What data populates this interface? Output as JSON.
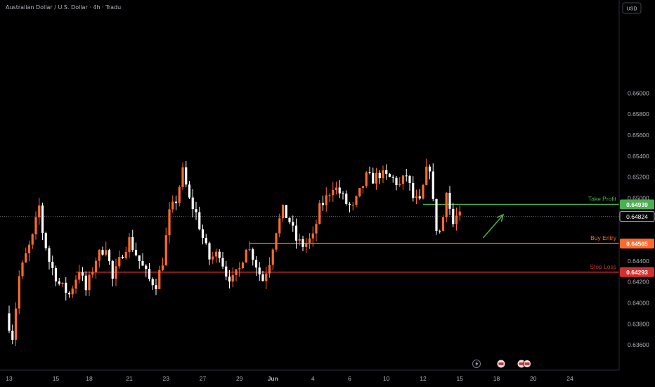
{
  "chart_data": {
    "type": "candlestick",
    "title": "Australian Dollar / U.S. Dollar · 4h · Tradu",
    "currency": "USD",
    "ylim": [
      0.6352,
      0.6672
    ],
    "y_ticks": [
      "0.66000",
      "0.65800",
      "0.65600",
      "0.65400",
      "0.65200",
      "0.65000",
      "0.64800",
      "0.64600",
      "0.64400",
      "0.64200",
      "0.64000",
      "0.63800",
      "0.63600"
    ],
    "x_tick_labels": [
      "13",
      "15",
      "18",
      "21",
      "23",
      "27",
      "29",
      "Jun",
      "4",
      "6",
      "10",
      "12",
      "15",
      "18",
      "20",
      "24"
    ],
    "x_tick_index": [
      0,
      14,
      24,
      36,
      47,
      58,
      69,
      79,
      91,
      102,
      113,
      124,
      135,
      146,
      157,
      168
    ],
    "current_price": {
      "value": 0.64824,
      "label": "0.64824"
    },
    "levels": [
      {
        "name": "Take Profit",
        "value": 0.64939,
        "label": "0.64939",
        "color": "#4caf50",
        "start_index": 124
      },
      {
        "name": "Buy Entry",
        "value": 0.64565,
        "label": "0.64565",
        "color": "#ff6a2a",
        "start_index": 72
      },
      {
        "name": "Stop Loss",
        "value": 0.64293,
        "label": "0.64293",
        "color": "#d32f2f",
        "start_index": 20
      }
    ],
    "arrow": {
      "from": [
        142,
        0.6462
      ],
      "to": [
        148,
        0.6484
      ],
      "color": "#4caf50"
    },
    "colors": {
      "up": "#ff6a2a",
      "down": "#ffffff",
      "background": "#000000",
      "axis_text": "#b2b5be"
    },
    "anchors": [
      [
        0,
        0.639
      ],
      [
        2,
        0.6368
      ],
      [
        4,
        0.6425
      ],
      [
        6,
        0.6445
      ],
      [
        8,
        0.6462
      ],
      [
        10,
        0.6492
      ],
      [
        11,
        0.6468
      ],
      [
        13,
        0.644
      ],
      [
        16,
        0.6418
      ],
      [
        19,
        0.6408
      ],
      [
        22,
        0.6432
      ],
      [
        24,
        0.6412
      ],
      [
        27,
        0.6442
      ],
      [
        30,
        0.6455
      ],
      [
        32,
        0.6422
      ],
      [
        35,
        0.6448
      ],
      [
        37,
        0.646
      ],
      [
        40,
        0.644
      ],
      [
        43,
        0.6422
      ],
      [
        45,
        0.6418
      ],
      [
        47,
        0.644
      ],
      [
        49,
        0.6485
      ],
      [
        51,
        0.6498
      ],
      [
        53,
        0.6525
      ],
      [
        55,
        0.6498
      ],
      [
        57,
        0.6485
      ],
      [
        59,
        0.6462
      ],
      [
        61,
        0.6442
      ],
      [
        64,
        0.6448
      ],
      [
        66,
        0.6428
      ],
      [
        68,
        0.6422
      ],
      [
        70,
        0.6432
      ],
      [
        72,
        0.6455
      ],
      [
        74,
        0.6445
      ],
      [
        76,
        0.6428
      ],
      [
        77,
        0.6422
      ],
      [
        79,
        0.644
      ],
      [
        81,
        0.647
      ],
      [
        83,
        0.6488
      ],
      [
        85,
        0.6478
      ],
      [
        87,
        0.646
      ],
      [
        89,
        0.6455
      ],
      [
        92,
        0.6462
      ],
      [
        94,
        0.649
      ],
      [
        96,
        0.65
      ],
      [
        98,
        0.6512
      ],
      [
        100,
        0.6505
      ],
      [
        102,
        0.6495
      ],
      [
        104,
        0.649
      ],
      [
        106,
        0.6505
      ],
      [
        108,
        0.652
      ],
      [
        110,
        0.6518
      ],
      [
        112,
        0.6523
      ],
      [
        114,
        0.652
      ],
      [
        116,
        0.6518
      ],
      [
        118,
        0.6512
      ],
      [
        120,
        0.6522
      ],
      [
        122,
        0.65
      ],
      [
        124,
        0.6495
      ],
      [
        126,
        0.6525
      ],
      [
        127,
        0.653
      ],
      [
        128,
        0.6495
      ],
      [
        129,
        0.6472
      ],
      [
        130,
        0.6468
      ],
      [
        131,
        0.6482
      ],
      [
        132,
        0.651
      ],
      [
        133,
        0.649
      ],
      [
        134,
        0.6475
      ],
      [
        135,
        0.6482
      ]
    ]
  }
}
